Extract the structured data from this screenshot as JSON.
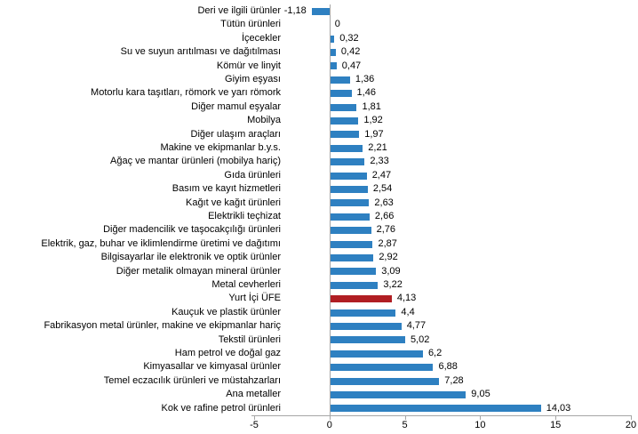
{
  "chart_data": {
    "type": "bar",
    "orientation": "horizontal",
    "categories": [
      "Deri ve ilgili ürünler",
      "Tütün ürünleri",
      "İçecekler",
      "Su ve suyun arıtılması ve dağıtılması",
      "Kömür ve linyit",
      "Giyim eşyası",
      "Motorlu kara taşıtları, römork ve yarı römork",
      "Diğer mamul eşyalar",
      "Mobilya",
      "Diğer ulaşım araçları",
      "Makine ve ekipmanlar b.y.s.",
      "Ağaç ve mantar ürünleri (mobilya hariç)",
      "Gıda ürünleri",
      "Basım ve kayıt hizmetleri",
      "Kağıt ve kağıt ürünleri",
      "Elektrikli teçhizat",
      "Diğer madencilik ve taşocakçılığı ürünleri",
      "Elektrik, gaz, buhar ve iklimlendirme üretimi ve dağıtımı",
      "Bilgisayarlar ile elektronik ve optik ürünler",
      "Diğer metalik olmayan mineral ürünler",
      "Metal cevherleri",
      "Yurt İçi ÜFE",
      "Kauçuk ve plastik ürünler",
      "Fabrikasyon metal ürünler, makine ve ekipmanlar hariç",
      "Tekstil ürünleri",
      "Ham petrol ve doğal gaz",
      "Kimyasallar ve kimyasal ürünler",
      "Temel eczacılık ürünleri ve müstahzarları",
      "Ana metaller",
      "Kok ve rafine petrol ürünleri"
    ],
    "values": [
      -1.18,
      0,
      0.32,
      0.42,
      0.47,
      1.36,
      1.46,
      1.81,
      1.92,
      1.97,
      2.21,
      2.33,
      2.47,
      2.54,
      2.63,
      2.66,
      2.76,
      2.87,
      2.92,
      3.09,
      3.22,
      4.13,
      4.4,
      4.77,
      5.02,
      6.2,
      6.88,
      7.28,
      9.05,
      14.03
    ],
    "value_labels": [
      "-1,18",
      "0",
      "0,32",
      "0,42",
      "0,47",
      "1,36",
      "1,46",
      "1,81",
      "1,92",
      "1,97",
      "2,21",
      "2,33",
      "2,47",
      "2,54",
      "2,63",
      "2,66",
      "2,76",
      "2,87",
      "2,92",
      "3,09",
      "3,22",
      "4,13",
      "4,4",
      "4,77",
      "5,02",
      "6,2",
      "6,88",
      "7,28",
      "9,05",
      "14,03"
    ],
    "highlight_category": "Yurt İçi ÜFE",
    "highlight_index": 21,
    "x_ticks": [
      -5,
      0,
      5,
      10,
      15,
      20
    ],
    "x_tick_labels": [
      "-5",
      "0",
      "5",
      "10",
      "15",
      "20"
    ],
    "xlim": [
      -5,
      20
    ],
    "grid": false,
    "legend": false,
    "colors": {
      "bar": "#2E80C1",
      "highlight": "#B01E23",
      "axis": "#A6A6A6"
    }
  }
}
